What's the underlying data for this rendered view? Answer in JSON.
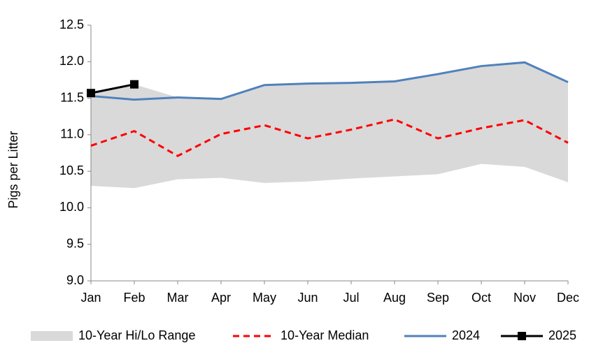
{
  "chart_data": {
    "type": "line",
    "ylabel": "Pigs per Litter",
    "categories": [
      "Jan",
      "Feb",
      "Mar",
      "Apr",
      "May",
      "Jun",
      "Jul",
      "Aug",
      "Sep",
      "Oct",
      "Nov",
      "Dec"
    ],
    "ylim": [
      9,
      12.5
    ],
    "yticks": [
      {
        "value": 9,
        "label": "9.0"
      },
      9.5,
      {
        "value": 10,
        "label": "10.0"
      },
      10.5,
      {
        "value": 11,
        "label": "11.0"
      },
      11.5,
      {
        "value": 12,
        "label": "12.0"
      },
      12.5
    ],
    "range": {
      "name": "10-Year Hi/Lo Range",
      "color": "#d9d9d9",
      "high": [
        11.57,
        11.69,
        11.51,
        11.49,
        11.68,
        11.7,
        11.71,
        11.73,
        11.83,
        11.94,
        11.99,
        11.72
      ],
      "low": [
        10.3,
        10.27,
        10.39,
        10.41,
        10.34,
        10.36,
        10.4,
        10.43,
        10.46,
        10.6,
        10.56,
        10.35
      ]
    },
    "series": [
      {
        "name": "10-Year Median",
        "color": "#ff0000",
        "dash": true,
        "values": [
          10.85,
          11.05,
          10.71,
          11.01,
          11.13,
          10.95,
          11.07,
          11.21,
          10.95,
          11.09,
          11.2,
          10.89
        ]
      },
      {
        "name": "2024",
        "color": "#4f81bd",
        "values": [
          11.53,
          11.48,
          11.51,
          11.49,
          11.68,
          11.7,
          11.71,
          11.73,
          11.83,
          11.94,
          11.99,
          11.72
        ]
      },
      {
        "name": "2025",
        "color": "#000000",
        "markers": true,
        "values": [
          11.57,
          11.69,
          null,
          null,
          null,
          null,
          null,
          null,
          null,
          null,
          null,
          null
        ]
      }
    ]
  }
}
